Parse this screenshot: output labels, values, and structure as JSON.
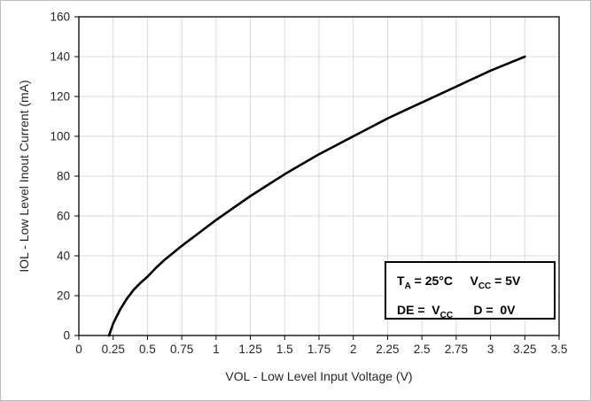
{
  "chart_data": {
    "type": "line",
    "title": "",
    "xlabel": "VOL - Low Level Input Voltage (V)",
    "ylabel": "IOL - Low Level Inout Current (mA)",
    "xlim": [
      0,
      3.5
    ],
    "ylim": [
      0,
      160
    ],
    "x_ticks": [
      0,
      0.25,
      0.5,
      0.75,
      1,
      1.25,
      1.5,
      1.75,
      2,
      2.25,
      2.5,
      2.75,
      3,
      3.25,
      3.5
    ],
    "x_tick_labels": [
      "0",
      "0.25",
      "0.5",
      "0.75",
      "1",
      "1.25",
      "1.5",
      "1.75",
      "2",
      "2.25",
      "2.5",
      "2.75",
      "3",
      "3.25",
      "3.5"
    ],
    "y_ticks": [
      0,
      20,
      40,
      60,
      80,
      100,
      120,
      140,
      160
    ],
    "y_tick_labels": [
      "0",
      "20",
      "40",
      "60",
      "80",
      "100",
      "120",
      "140",
      "160"
    ],
    "grid": true,
    "legend": "none",
    "line_color": "#000000",
    "grid_color": "#d9d9d9",
    "axis_color": "#000000",
    "tick_label_color": "#262626",
    "series": [
      {
        "name": "IOL vs VOL",
        "points": [
          [
            0.22,
            0
          ],
          [
            0.25,
            6
          ],
          [
            0.3,
            13
          ],
          [
            0.35,
            18.5
          ],
          [
            0.4,
            23
          ],
          [
            0.45,
            26.5
          ],
          [
            0.5,
            29.5
          ],
          [
            0.5625,
            34
          ],
          [
            0.625,
            38
          ],
          [
            0.6875,
            41.5
          ],
          [
            0.75,
            45
          ],
          [
            0.875,
            51.5
          ],
          [
            1.0,
            58
          ],
          [
            1.125,
            64
          ],
          [
            1.25,
            70
          ],
          [
            1.375,
            75.5
          ],
          [
            1.5,
            81
          ],
          [
            1.625,
            86
          ],
          [
            1.75,
            91
          ],
          [
            1.875,
            95.5
          ],
          [
            2.0,
            100
          ],
          [
            2.125,
            104.5
          ],
          [
            2.25,
            109
          ],
          [
            2.375,
            113
          ],
          [
            2.5,
            117
          ],
          [
            2.625,
            121
          ],
          [
            2.75,
            125
          ],
          [
            2.875,
            129
          ],
          [
            3.0,
            133
          ],
          [
            3.125,
            136.5
          ],
          [
            3.25,
            140
          ]
        ]
      }
    ],
    "annotation": {
      "lines": [
        [
          {
            "t": "T"
          },
          {
            "t": "A",
            "sub": true
          },
          {
            "t": " = 25°C     "
          },
          {
            "t": "V"
          },
          {
            "t": "CC",
            "sub": true
          },
          {
            "t": " = 5V"
          }
        ],
        [
          {
            "t": "DE =  "
          },
          {
            "t": "V"
          },
          {
            "t": "CC",
            "sub": true
          },
          {
            "t": "      D =  0V"
          }
        ]
      ]
    }
  }
}
